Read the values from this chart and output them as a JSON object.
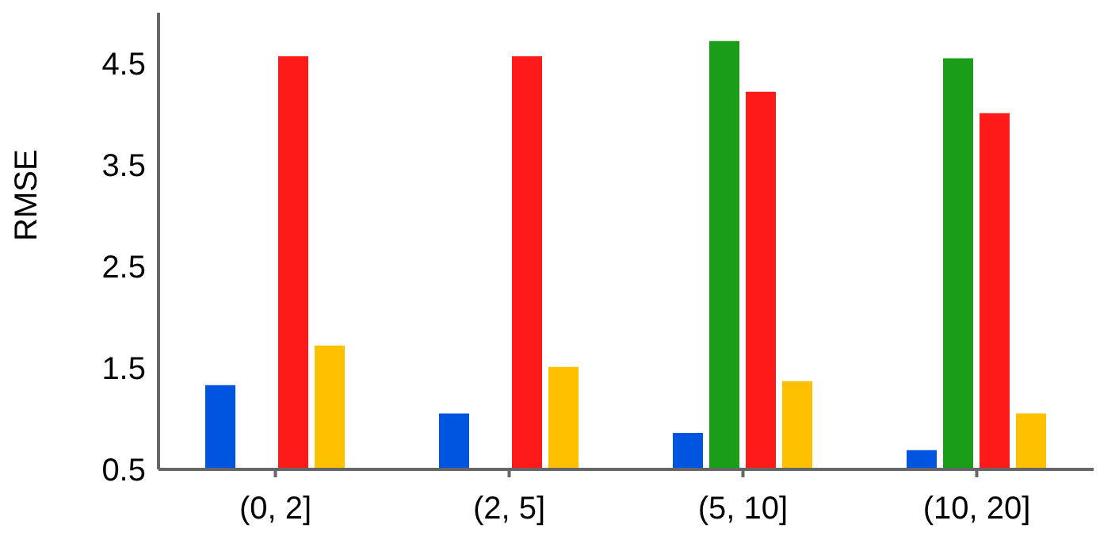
{
  "chart_data": {
    "type": "bar",
    "ylabel": "RMSE",
    "categories": [
      "(0, 2]",
      "(2, 5]",
      "(5, 10]",
      "(10, 20]"
    ],
    "series": [
      {
        "color": "#0055e0",
        "values": [
          1.33,
          1.05,
          0.86,
          0.69
        ]
      },
      {
        "color": "#1a9e1a",
        "values": [
          null,
          null,
          4.72,
          4.55
        ]
      },
      {
        "color": "#ff1a1a",
        "values": [
          4.57,
          4.57,
          4.22,
          4.01
        ]
      },
      {
        "color": "#ffc000",
        "values": [
          1.72,
          1.51,
          1.37,
          1.05
        ]
      }
    ],
    "ylim": [
      0.5,
      5.0
    ],
    "yticks": [
      0.5,
      1.5,
      2.5,
      3.5,
      4.5
    ],
    "grid": false,
    "legend": false
  }
}
